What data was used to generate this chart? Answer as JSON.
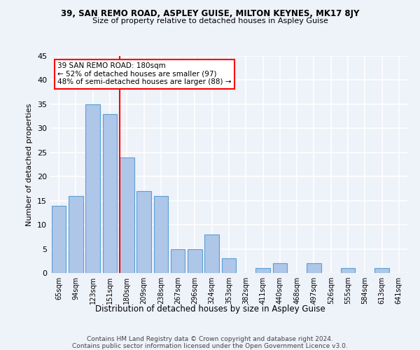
{
  "title1": "39, SAN REMO ROAD, ASPLEY GUISE, MILTON KEYNES, MK17 8JY",
  "title2": "Size of property relative to detached houses in Aspley Guise",
  "xlabel": "Distribution of detached houses by size in Aspley Guise",
  "ylabel": "Number of detached properties",
  "categories": [
    "65sqm",
    "94sqm",
    "123sqm",
    "151sqm",
    "180sqm",
    "209sqm",
    "238sqm",
    "267sqm",
    "296sqm",
    "324sqm",
    "353sqm",
    "382sqm",
    "411sqm",
    "440sqm",
    "468sqm",
    "497sqm",
    "526sqm",
    "555sqm",
    "584sqm",
    "613sqm",
    "641sqm"
  ],
  "values": [
    14,
    16,
    35,
    33,
    24,
    17,
    16,
    5,
    5,
    8,
    3,
    0,
    1,
    2,
    0,
    2,
    0,
    1,
    0,
    1,
    0
  ],
  "bar_color": "#aec6e8",
  "bar_edge_color": "#5a9fd4",
  "vline_index": 4,
  "vline_color": "red",
  "annotation_text": "39 SAN REMO ROAD: 180sqm\n← 52% of detached houses are smaller (97)\n48% of semi-detached houses are larger (88) →",
  "annotation_box_color": "white",
  "annotation_box_edge_color": "red",
  "ylim": [
    0,
    45
  ],
  "yticks": [
    0,
    5,
    10,
    15,
    20,
    25,
    30,
    35,
    40,
    45
  ],
  "footer1": "Contains HM Land Registry data © Crown copyright and database right 2024.",
  "footer2": "Contains public sector information licensed under the Open Government Licence v3.0.",
  "bg_color": "#eef2f9",
  "grid_color": "white"
}
